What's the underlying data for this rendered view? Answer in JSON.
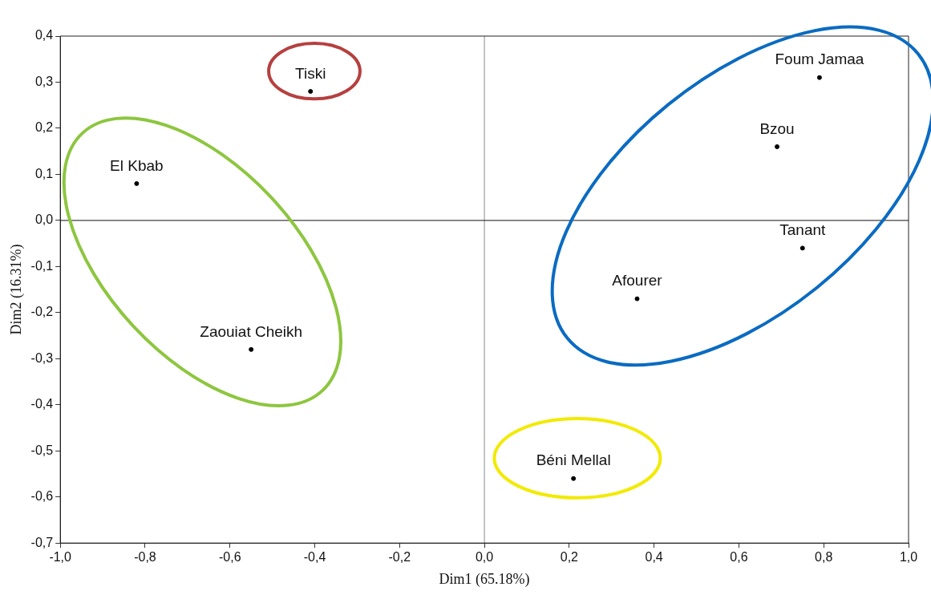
{
  "chart_data": {
    "type": "scatter",
    "xlabel": "Dim1 (65.18%)",
    "ylabel": "Dim2 (16.31%)",
    "x": [
      -0.41,
      -0.82,
      -0.55,
      0.79,
      0.69,
      0.75,
      0.36,
      0.21
    ],
    "series": [
      {
        "color": "#000000",
        "values": [
          0.28,
          0.08,
          -0.28,
          0.31,
          0.16,
          -0.06,
          -0.17,
          -0.56
        ]
      }
    ],
    "marker": "circle",
    "xlim": [
      -1.0,
      1.0
    ],
    "xticks": [
      {
        "value": -1.0,
        "label": "-1,0"
      },
      {
        "value": -0.8,
        "label": "-0,8"
      },
      {
        "value": -0.6,
        "label": "-0,6"
      },
      {
        "value": -0.4,
        "label": "-0,4"
      },
      {
        "value": -0.2,
        "label": "-0,2"
      },
      {
        "value": 0.0,
        "label": "0,0"
      },
      {
        "value": 0.2,
        "label": "0,2"
      },
      {
        "value": 0.4,
        "label": "0,4"
      },
      {
        "value": 0.6,
        "label": "0,6"
      },
      {
        "value": 0.8,
        "label": "0,8"
      },
      {
        "value": 1.0,
        "label": "1,0"
      }
    ],
    "ylim": [
      -0.7,
      0.4
    ],
    "yticks": [
      {
        "value": -0.7,
        "label": "-0,7"
      },
      {
        "value": -0.6,
        "label": "-0,6"
      },
      {
        "value": -0.5,
        "label": "-0,5"
      },
      {
        "value": -0.4,
        "label": "-0,4"
      },
      {
        "value": -0.3,
        "label": "-0,3"
      },
      {
        "value": -0.2,
        "label": "-0,2"
      },
      {
        "value": -0.1,
        "label": "-0,1"
      },
      {
        "value": 0.0,
        "label": "0,0"
      },
      {
        "value": 0.1,
        "label": "0,1"
      },
      {
        "value": 0.2,
        "label": "0,2"
      },
      {
        "value": 0.3,
        "label": "0,3"
      },
      {
        "value": 0.4,
        "label": "0,4"
      }
    ],
    "ref_lines": [
      {
        "axis": "x",
        "value": 0
      },
      {
        "axis": "y",
        "value": 0
      }
    ],
    "annotations": [
      {
        "text": "Tiski",
        "x": -0.41,
        "y": 0.28
      },
      {
        "text": "El Kbab",
        "x": -0.82,
        "y": 0.08
      },
      {
        "text": "Zaouiat Cheikh",
        "x": -0.55,
        "y": -0.28
      },
      {
        "text": "Foum Jamaa",
        "x": 0.79,
        "y": 0.31
      },
      {
        "text": "Bzou",
        "x": 0.69,
        "y": 0.16
      },
      {
        "text": "Tanant",
        "x": 0.75,
        "y": -0.06
      },
      {
        "text": "Afourer",
        "x": 0.36,
        "y": -0.17
      },
      {
        "text": "Béni Mellal",
        "x": 0.21,
        "y": -0.56
      }
    ]
  }
}
